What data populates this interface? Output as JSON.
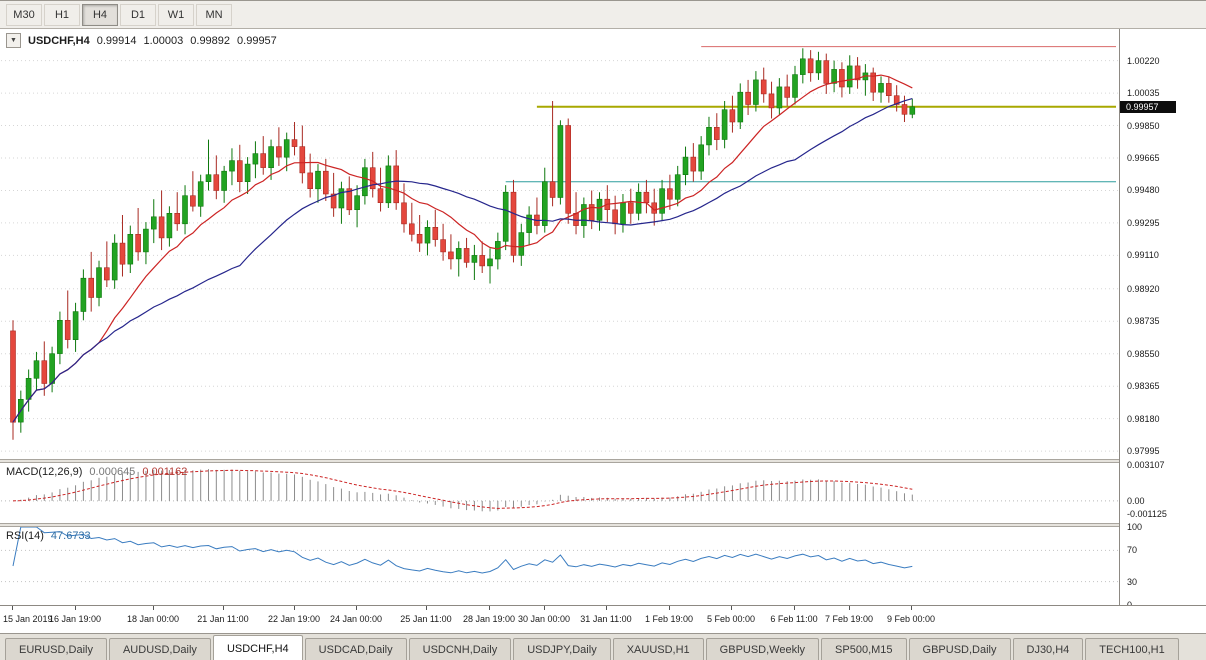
{
  "toolbar": {
    "timeframes": [
      "M30",
      "H1",
      "H4",
      "D1",
      "W1",
      "MN"
    ],
    "active": "H4"
  },
  "chart": {
    "title": {
      "collapse_icon": "▼",
      "symbol": "USDCHF,H4",
      "open": "0.99914",
      "high": "1.00003",
      "low": "0.99892",
      "close": "0.99957"
    },
    "price_label": "0.99957"
  },
  "chart_data": {
    "type": "candlestick",
    "symbol": "USDCHF",
    "timeframe": "H4",
    "price_tag_value": 0.99957,
    "colors": {
      "up": "#22a322",
      "up_border": "#0d780d",
      "down": "#e4473d",
      "down_border": "#a82a22",
      "grid": "#d6d6d6",
      "ma_fast": "#cc2424",
      "ma_slow": "#26268c"
    },
    "y_axis": {
      "min": 0.9795,
      "max": 1.004,
      "ticks": [
        1.0022,
        1.00035,
        0.9985,
        0.99665,
        0.9948,
        0.99295,
        0.9911,
        0.9892,
        0.98735,
        0.9855,
        0.98365,
        0.9818,
        0.97995
      ]
    },
    "x_axis": {
      "labels": [
        {
          "text": "15 Jan 2019",
          "index": 0
        },
        {
          "text": "16 Jan 19:00",
          "index": 8
        },
        {
          "text": "18 Jan 00:00",
          "index": 18
        },
        {
          "text": "21 Jan 11:00",
          "index": 27
        },
        {
          "text": "22 Jan 19:00",
          "index": 36
        },
        {
          "text": "24 Jan 00:00",
          "index": 44
        },
        {
          "text": "25 Jan 11:00",
          "index": 53
        },
        {
          "text": "28 Jan 19:00",
          "index": 61
        },
        {
          "text": "30 Jan 00:00",
          "index": 68
        },
        {
          "text": "31 Jan 11:00",
          "index": 76
        },
        {
          "text": "1 Feb 19:00",
          "index": 84
        },
        {
          "text": "5 Feb 00:00",
          "index": 92
        },
        {
          "text": "6 Feb 11:00",
          "index": 100
        },
        {
          "text": "7 Feb 19:00",
          "index": 107
        },
        {
          "text": "9 Feb 00:00",
          "index": 115
        }
      ]
    },
    "levels": [
      {
        "name": "resistance",
        "value": 1.003,
        "color": "#d96a6a",
        "width": 1,
        "from_index": 88
      },
      {
        "name": "pivot",
        "value": 0.99957,
        "color": "#a8a800",
        "width": 2,
        "from_index": 67
      },
      {
        "name": "support",
        "value": 0.9953,
        "color": "#2f9e9e",
        "width": 1,
        "from_index": 63
      }
    ],
    "moving_averages": [
      {
        "period": 12,
        "color": "#cc2424"
      },
      {
        "period": 30,
        "color": "#26268c"
      }
    ],
    "candles": [
      [
        0.9868,
        0.9874,
        0.9806,
        0.9816
      ],
      [
        0.9816,
        0.9834,
        0.981,
        0.9829
      ],
      [
        0.9829,
        0.9846,
        0.9822,
        0.9841
      ],
      [
        0.9841,
        0.9856,
        0.9834,
        0.9851
      ],
      [
        0.9851,
        0.9862,
        0.9831,
        0.9838
      ],
      [
        0.9838,
        0.9859,
        0.9833,
        0.9855
      ],
      [
        0.9855,
        0.9879,
        0.9849,
        0.9874
      ],
      [
        0.9874,
        0.9891,
        0.9858,
        0.9863
      ],
      [
        0.9863,
        0.9884,
        0.9856,
        0.9879
      ],
      [
        0.9879,
        0.9903,
        0.9874,
        0.9898
      ],
      [
        0.9898,
        0.9913,
        0.9879,
        0.9887
      ],
      [
        0.9887,
        0.9908,
        0.9882,
        0.9904
      ],
      [
        0.9904,
        0.9919,
        0.9893,
        0.9897
      ],
      [
        0.9897,
        0.9923,
        0.9892,
        0.9918
      ],
      [
        0.9918,
        0.9934,
        0.9899,
        0.9906
      ],
      [
        0.9906,
        0.9928,
        0.9901,
        0.9923
      ],
      [
        0.9923,
        0.9938,
        0.9908,
        0.9913
      ],
      [
        0.9913,
        0.993,
        0.9906,
        0.9926
      ],
      [
        0.9926,
        0.9943,
        0.9918,
        0.9933
      ],
      [
        0.9933,
        0.9948,
        0.9914,
        0.9921
      ],
      [
        0.9921,
        0.9939,
        0.9916,
        0.9935
      ],
      [
        0.9935,
        0.9947,
        0.9925,
        0.9929
      ],
      [
        0.9929,
        0.9951,
        0.9923,
        0.9945
      ],
      [
        0.9945,
        0.9959,
        0.9936,
        0.9939
      ],
      [
        0.9939,
        0.9957,
        0.9933,
        0.9953
      ],
      [
        0.9953,
        0.9977,
        0.9948,
        0.9957
      ],
      [
        0.9957,
        0.9968,
        0.9943,
        0.9948
      ],
      [
        0.9948,
        0.9962,
        0.9941,
        0.9959
      ],
      [
        0.9959,
        0.9972,
        0.9951,
        0.9965
      ],
      [
        0.9965,
        0.9974,
        0.9947,
        0.9953
      ],
      [
        0.9953,
        0.9967,
        0.9946,
        0.9963
      ],
      [
        0.9963,
        0.9976,
        0.9955,
        0.9969
      ],
      [
        0.9969,
        0.9979,
        0.9957,
        0.9961
      ],
      [
        0.9961,
        0.9977,
        0.9954,
        0.9973
      ],
      [
        0.9973,
        0.9984,
        0.9962,
        0.9967
      ],
      [
        0.9967,
        0.9981,
        0.9959,
        0.9977
      ],
      [
        0.9977,
        0.9987,
        0.9968,
        0.9973
      ],
      [
        0.9973,
        0.9985,
        0.9952,
        0.9958
      ],
      [
        0.9958,
        0.9969,
        0.9944,
        0.9949
      ],
      [
        0.9949,
        0.9963,
        0.9941,
        0.9959
      ],
      [
        0.9959,
        0.9966,
        0.9942,
        0.9946
      ],
      [
        0.9946,
        0.9958,
        0.9933,
        0.9938
      ],
      [
        0.9938,
        0.9953,
        0.9929,
        0.9949
      ],
      [
        0.9949,
        0.9956,
        0.9934,
        0.9937
      ],
      [
        0.9937,
        0.9951,
        0.9927,
        0.9945
      ],
      [
        0.9945,
        0.9966,
        0.994,
        0.9961
      ],
      [
        0.9961,
        0.997,
        0.9944,
        0.9949
      ],
      [
        0.9949,
        0.9961,
        0.9936,
        0.9941
      ],
      [
        0.9941,
        0.9968,
        0.9938,
        0.9962
      ],
      [
        0.9962,
        0.9971,
        0.9937,
        0.9941
      ],
      [
        0.9941,
        0.9952,
        0.9924,
        0.9929
      ],
      [
        0.9929,
        0.9941,
        0.9919,
        0.9923
      ],
      [
        0.9923,
        0.9934,
        0.9913,
        0.9918
      ],
      [
        0.9918,
        0.9931,
        0.9911,
        0.9927
      ],
      [
        0.9927,
        0.9937,
        0.9916,
        0.992
      ],
      [
        0.992,
        0.9929,
        0.9908,
        0.9913
      ],
      [
        0.9913,
        0.9923,
        0.9903,
        0.9909
      ],
      [
        0.9909,
        0.9919,
        0.9899,
        0.9915
      ],
      [
        0.9915,
        0.9921,
        0.9904,
        0.9907
      ],
      [
        0.9907,
        0.9917,
        0.9897,
        0.9911
      ],
      [
        0.9911,
        0.9919,
        0.9901,
        0.9905
      ],
      [
        0.9905,
        0.9915,
        0.9895,
        0.9909
      ],
      [
        0.9909,
        0.9924,
        0.9903,
        0.9919
      ],
      [
        0.9919,
        0.9951,
        0.9914,
        0.9947
      ],
      [
        0.9947,
        0.9954,
        0.9907,
        0.9911
      ],
      [
        0.9911,
        0.9929,
        0.9905,
        0.9924
      ],
      [
        0.9924,
        0.9939,
        0.9917,
        0.9934
      ],
      [
        0.9934,
        0.9944,
        0.9923,
        0.9928
      ],
      [
        0.9928,
        0.9961,
        0.9924,
        0.9953
      ],
      [
        0.9953,
        0.9999,
        0.9939,
        0.9944
      ],
      [
        0.9944,
        0.9988,
        0.994,
        0.9985
      ],
      [
        0.9985,
        0.9989,
        0.9929,
        0.9935
      ],
      [
        0.9935,
        0.9947,
        0.9923,
        0.9928
      ],
      [
        0.9928,
        0.9944,
        0.9921,
        0.994
      ],
      [
        0.994,
        0.9948,
        0.9926,
        0.9931
      ],
      [
        0.9931,
        0.9947,
        0.9925,
        0.9943
      ],
      [
        0.9943,
        0.9951,
        0.993,
        0.9937
      ],
      [
        0.9937,
        0.9945,
        0.9923,
        0.9929
      ],
      [
        0.9929,
        0.9946,
        0.9924,
        0.9941
      ],
      [
        0.9941,
        0.9949,
        0.9929,
        0.9935
      ],
      [
        0.9935,
        0.9952,
        0.9931,
        0.9947
      ],
      [
        0.9947,
        0.9954,
        0.9935,
        0.9941
      ],
      [
        0.9941,
        0.9949,
        0.9928,
        0.9935
      ],
      [
        0.9935,
        0.9954,
        0.9931,
        0.9949
      ],
      [
        0.9949,
        0.9957,
        0.9937,
        0.9943
      ],
      [
        0.9943,
        0.9962,
        0.9939,
        0.9957
      ],
      [
        0.9957,
        0.9973,
        0.9951,
        0.9967
      ],
      [
        0.9967,
        0.9975,
        0.9953,
        0.9959
      ],
      [
        0.9959,
        0.9979,
        0.9954,
        0.9974
      ],
      [
        0.9974,
        0.999,
        0.9968,
        0.9984
      ],
      [
        0.9984,
        0.9992,
        0.9971,
        0.9977
      ],
      [
        0.9977,
        0.9999,
        0.9972,
        0.9994
      ],
      [
        0.9994,
        1.0002,
        0.9981,
        0.9987
      ],
      [
        0.9987,
        1.0009,
        0.9983,
        1.0004
      ],
      [
        1.0004,
        1.0011,
        0.9991,
        0.9997
      ],
      [
        0.9997,
        1.0016,
        0.9993,
        1.0011
      ],
      [
        1.0011,
        1.0018,
        0.9998,
        1.0003
      ],
      [
        1.0003,
        1.001,
        0.9989,
        0.9995
      ],
      [
        0.9995,
        1.0012,
        0.9991,
        1.0007
      ],
      [
        1.0007,
        1.0014,
        0.9996,
        1.0001
      ],
      [
        1.0001,
        1.0019,
        0.9997,
        1.0014
      ],
      [
        1.0014,
        1.0029,
        1.0009,
        1.0023
      ],
      [
        1.0023,
        1.0028,
        1.001,
        1.0015
      ],
      [
        1.0015,
        1.0027,
        1.0011,
        1.0022
      ],
      [
        1.0022,
        1.0026,
        1.0003,
        1.0009
      ],
      [
        1.0009,
        1.0022,
        1.0004,
        1.0017
      ],
      [
        1.0017,
        1.0021,
        1.0001,
        1.0007
      ],
      [
        1.0007,
        1.0025,
        1.0003,
        1.0019
      ],
      [
        1.0019,
        1.0024,
        1.0006,
        1.0011
      ],
      [
        1.0011,
        1.002,
        1.0002,
        1.0015
      ],
      [
        1.0015,
        1.0018,
        0.9999,
        1.0004
      ],
      [
        1.0004,
        1.0013,
        0.9998,
        1.0009
      ],
      [
        1.0009,
        1.0013,
        0.9998,
        1.0002
      ],
      [
        1.0002,
        1.0008,
        0.9993,
        0.9997
      ],
      [
        0.9997,
        1.0002,
        0.9987,
        0.99914
      ],
      [
        0.99914,
        1.00003,
        0.99892,
        0.99957
      ]
    ]
  },
  "macd": {
    "header": "MACD(12,26,9)",
    "value_main": "0.000645",
    "value_signal": "0.001162",
    "fast": 12,
    "slow": 26,
    "signal": 9,
    "range": [
      -0.0019,
      0.00325
    ],
    "histogram_color": "#8c8c8c",
    "signal_color": "#cc2424",
    "ticks": [
      {
        "label": "0.003107",
        "value": 0.003107
      },
      {
        "label": "0.00",
        "value": 0
      },
      {
        "label": "-0.001125",
        "value": -0.001125
      }
    ]
  },
  "rsi": {
    "header": "RSI(14)",
    "value": "47.6733",
    "period": 14,
    "levels": [
      30,
      70
    ],
    "color": "#3a7cc0",
    "ticks": [
      {
        "label": "100",
        "value": 100
      },
      {
        "label": "70",
        "value": 70
      },
      {
        "label": "30",
        "value": 30
      },
      {
        "label": "0",
        "value": 0
      }
    ]
  },
  "tabs": [
    {
      "label": "EURUSD,Daily",
      "active": false
    },
    {
      "label": "AUDUSD,Daily",
      "active": false
    },
    {
      "label": "USDCHF,H4",
      "active": true
    },
    {
      "label": "USDCAD,Daily",
      "active": false
    },
    {
      "label": "USDCNH,Daily",
      "active": false
    },
    {
      "label": "USDJPY,Daily",
      "active": false
    },
    {
      "label": "XAUUSD,H1",
      "active": false
    },
    {
      "label": "GBPUSD,Weekly",
      "active": false
    },
    {
      "label": "SP500,M15",
      "active": false
    },
    {
      "label": "GBPUSD,Daily",
      "active": false
    },
    {
      "label": "DJ30,H4",
      "active": false
    },
    {
      "label": "TECH100,H1",
      "active": false
    }
  ]
}
